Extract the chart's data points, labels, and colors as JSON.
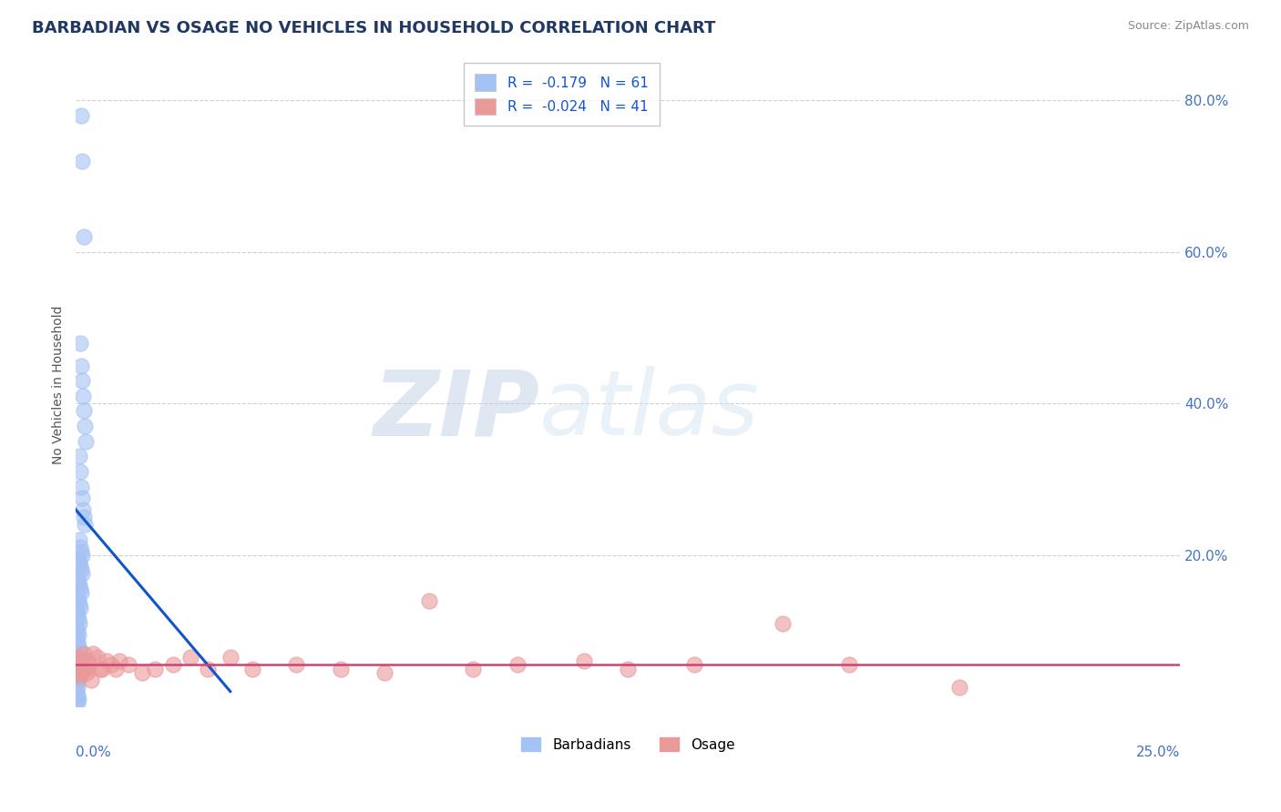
{
  "title": "BARBADIAN VS OSAGE NO VEHICLES IN HOUSEHOLD CORRELATION CHART",
  "source": "Source: ZipAtlas.com",
  "ylabel": "No Vehicles in Household",
  "xlim": [
    0.0,
    25.0
  ],
  "ylim": [
    0.0,
    85.0
  ],
  "barbadian_R": -0.179,
  "barbadian_N": 61,
  "osage_R": -0.024,
  "osage_N": 41,
  "blue_color": "#a4c2f4",
  "pink_color": "#ea9999",
  "blue_line_color": "#1155cc",
  "pink_line_color": "#cc4477",
  "background_color": "#ffffff",
  "grid_color": "#cccccc",
  "title_fontsize": 13,
  "blue_x": [
    0.12,
    0.14,
    0.18,
    0.1,
    0.12,
    0.14,
    0.16,
    0.18,
    0.2,
    0.22,
    0.08,
    0.1,
    0.12,
    0.14,
    0.16,
    0.18,
    0.2,
    0.08,
    0.1,
    0.12,
    0.14,
    0.06,
    0.08,
    0.1,
    0.12,
    0.14,
    0.04,
    0.06,
    0.08,
    0.1,
    0.12,
    0.04,
    0.06,
    0.08,
    0.1,
    0.02,
    0.04,
    0.06,
    0.08,
    0.02,
    0.04,
    0.06,
    0.02,
    0.04,
    0.06,
    0.08,
    0.1,
    0.02,
    0.04,
    0.06,
    0.08,
    0.02,
    0.04,
    0.06,
    0.02,
    0.04,
    0.02,
    0.04,
    0.06,
    0.02,
    0.04
  ],
  "blue_y": [
    78.0,
    72.0,
    62.0,
    48.0,
    45.0,
    43.0,
    41.0,
    39.0,
    37.0,
    35.0,
    33.0,
    31.0,
    29.0,
    27.5,
    26.0,
    25.0,
    24.0,
    22.0,
    21.0,
    20.5,
    20.0,
    19.5,
    19.0,
    18.5,
    18.0,
    17.5,
    17.0,
    16.5,
    16.0,
    15.5,
    15.0,
    14.5,
    14.0,
    13.5,
    13.0,
    12.5,
    12.0,
    11.5,
    11.0,
    10.5,
    10.0,
    9.5,
    9.0,
    8.5,
    8.0,
    7.5,
    7.0,
    6.5,
    6.0,
    5.5,
    5.0,
    4.5,
    4.0,
    3.5,
    3.0,
    2.5,
    2.0,
    1.5,
    1.0,
    0.8,
    0.5
  ],
  "pink_x": [
    0.04,
    0.06,
    0.08,
    0.1,
    0.14,
    0.18,
    0.22,
    0.26,
    0.3,
    0.4,
    0.5,
    0.6,
    0.7,
    0.8,
    0.9,
    1.0,
    1.2,
    1.5,
    1.8,
    2.2,
    2.6,
    3.0,
    3.5,
    4.0,
    5.0,
    6.0,
    7.0,
    8.0,
    9.0,
    10.0,
    11.5,
    12.5,
    14.0,
    16.0,
    17.5,
    20.0,
    0.08,
    0.16,
    0.24,
    0.35,
    0.55
  ],
  "pink_y": [
    5.0,
    6.5,
    4.5,
    6.0,
    5.5,
    7.0,
    5.0,
    6.0,
    5.5,
    7.0,
    6.5,
    5.0,
    6.0,
    5.5,
    5.0,
    6.0,
    5.5,
    4.5,
    5.0,
    5.5,
    6.5,
    5.0,
    6.5,
    5.0,
    5.5,
    5.0,
    4.5,
    14.0,
    5.0,
    5.5,
    6.0,
    5.0,
    5.5,
    11.0,
    5.5,
    2.5,
    4.0,
    5.0,
    4.5,
    3.5,
    5.0
  ],
  "blue_trendline_x0": 0.0,
  "blue_trendline_y0": 26.0,
  "blue_trendline_x1": 3.5,
  "blue_trendline_y1": 2.0,
  "pink_trendline_y": 5.5,
  "watermark_zip": "ZIP",
  "watermark_atlas": "atlas",
  "watermark_zip_color": "#c8d8f0",
  "watermark_atlas_color": "#d8e8f8"
}
